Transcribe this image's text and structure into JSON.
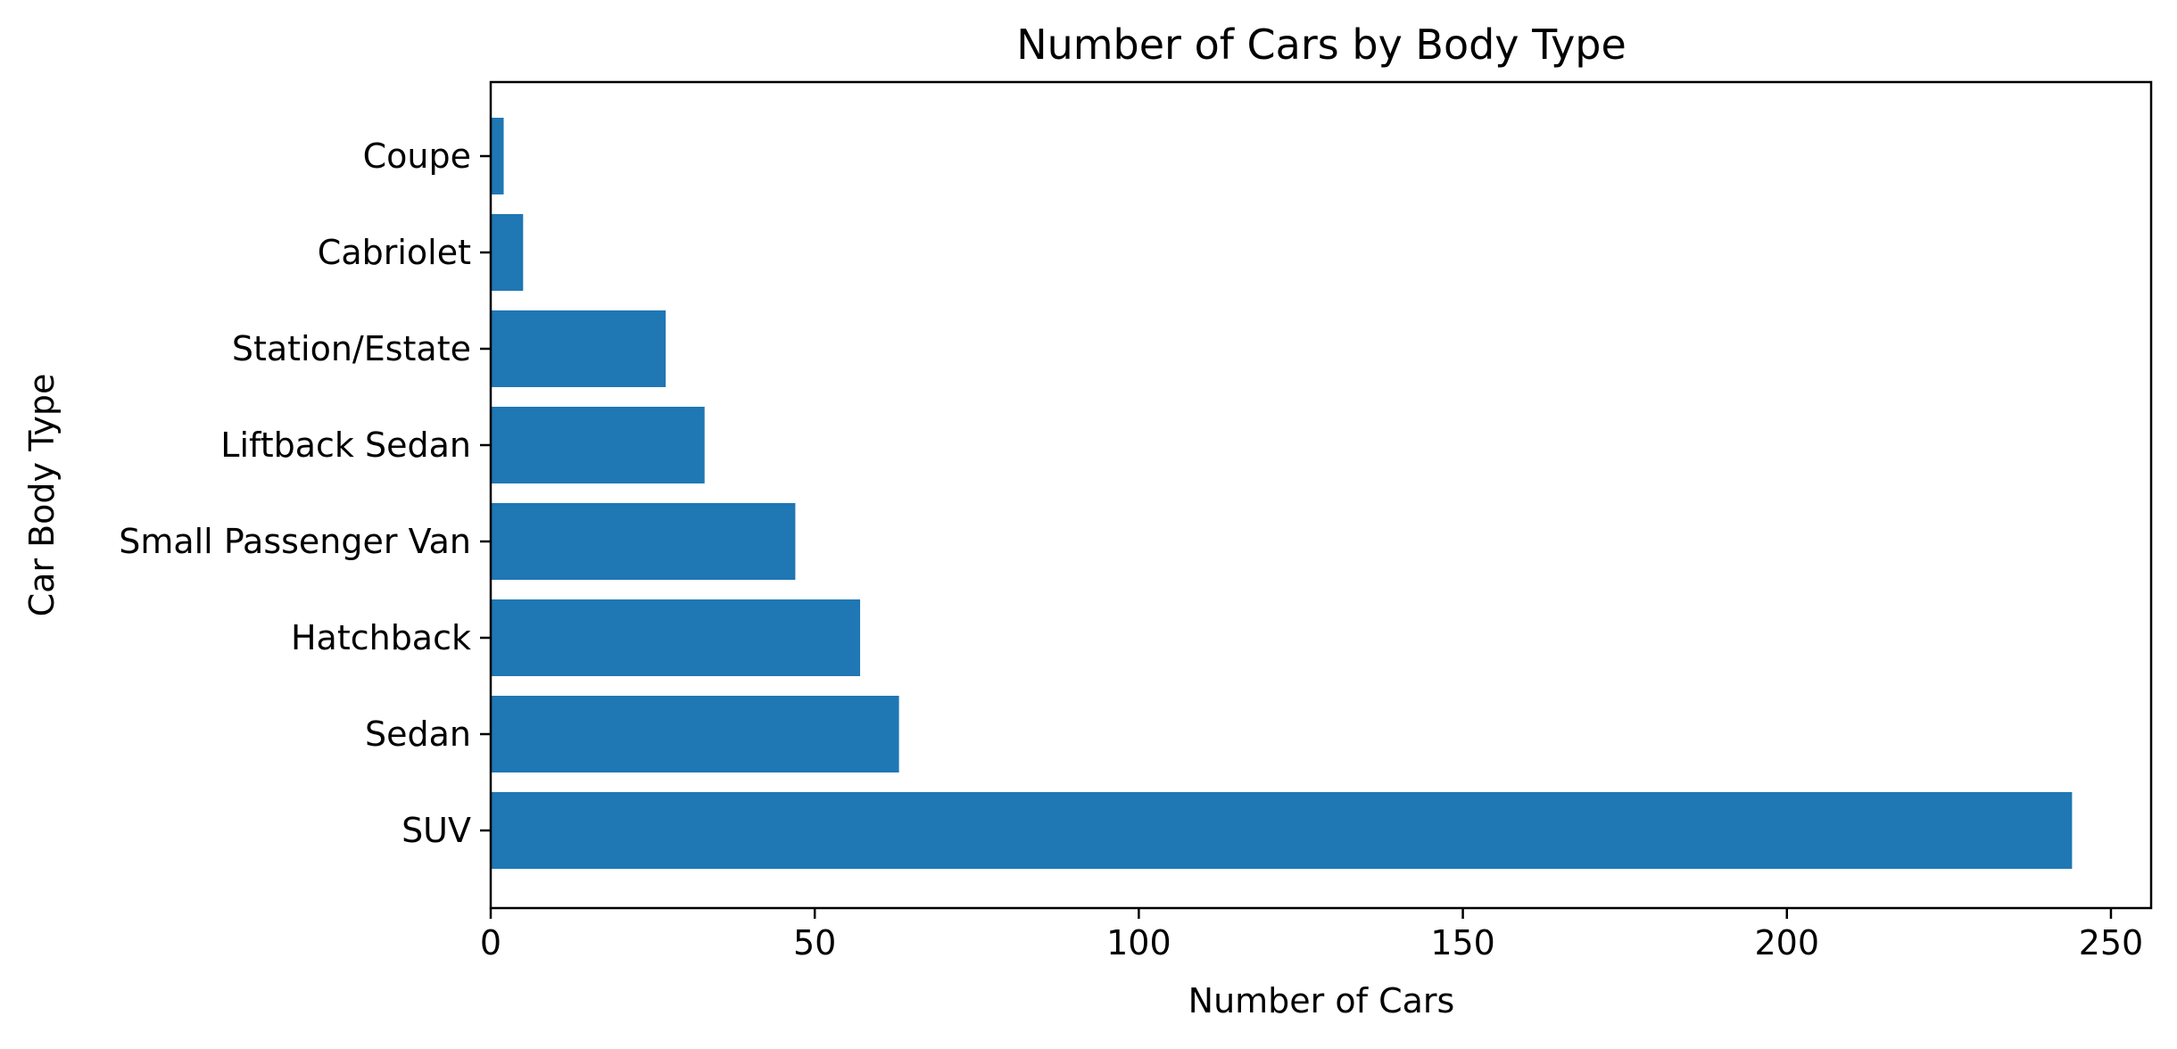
{
  "chart_data": {
    "type": "bar",
    "orientation": "horizontal",
    "title": "Number of Cars by Body Type",
    "xlabel": "Number of Cars",
    "ylabel": "Car Body Type",
    "categories": [
      "SUV",
      "Sedan",
      "Hatchback",
      "Small Passenger Van",
      "Liftback Sedan",
      "Station/Estate",
      "Cabriolet",
      "Coupe"
    ],
    "values": [
      244,
      63,
      57,
      47,
      33,
      27,
      5,
      2
    ],
    "xlim": [
      0,
      256.2
    ],
    "xticks": [
      0,
      50,
      100,
      150,
      200,
      250
    ],
    "grid": false,
    "legend": "none",
    "colors": {
      "bar": "#1f77b4",
      "axis": "#000000",
      "background": "#ffffff"
    }
  }
}
